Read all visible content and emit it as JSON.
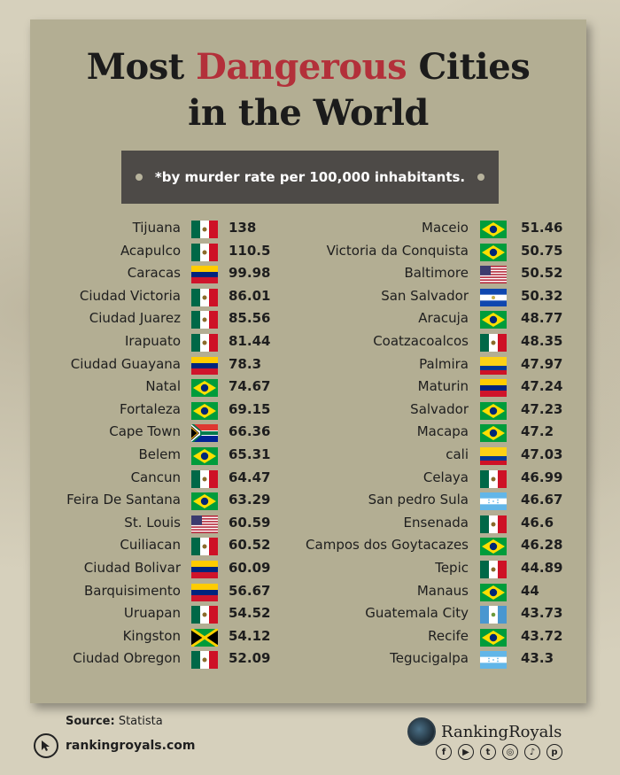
{
  "title": {
    "part1": "Most ",
    "highlight": "Dangerous",
    "part2": " Cities",
    "line2": "in the World"
  },
  "subtitle": "*by murder rate per 100,000 inhabitants.",
  "colors": {
    "highlight": "#b3303a",
    "poster": "#b3ae93",
    "bar": "#4d4a47"
  },
  "chart_data": {
    "type": "table",
    "columns": [
      {
        "rows": [
          {
            "city": "Tijuana",
            "country": "mexico",
            "rate": "138"
          },
          {
            "city": "Acapulco",
            "country": "mexico",
            "rate": "110.5"
          },
          {
            "city": "Caracas",
            "country": "venezuela",
            "rate": "99.98"
          },
          {
            "city": "Ciudad Victoria",
            "country": "mexico",
            "rate": "86.01"
          },
          {
            "city": "Ciudad Juarez",
            "country": "mexico",
            "rate": "85.56"
          },
          {
            "city": "Irapuato",
            "country": "mexico",
            "rate": "81.44"
          },
          {
            "city": "Ciudad Guayana",
            "country": "venezuela",
            "rate": "78.3"
          },
          {
            "city": "Natal",
            "country": "brazil",
            "rate": "74.67"
          },
          {
            "city": "Fortaleza",
            "country": "brazil",
            "rate": "69.15"
          },
          {
            "city": "Cape Town",
            "country": "south-africa",
            "rate": "66.36"
          },
          {
            "city": "Belem",
            "country": "brazil",
            "rate": "65.31"
          },
          {
            "city": "Cancun",
            "country": "mexico",
            "rate": "64.47"
          },
          {
            "city": "Feira De Santana",
            "country": "brazil",
            "rate": "63.29"
          },
          {
            "city": "St. Louis",
            "country": "usa",
            "rate": "60.59"
          },
          {
            "city": "Cuiliacan",
            "country": "mexico",
            "rate": "60.52"
          },
          {
            "city": "Ciudad Bolivar",
            "country": "venezuela",
            "rate": "60.09"
          },
          {
            "city": "Barquisimento",
            "country": "venezuela",
            "rate": "56.67"
          },
          {
            "city": "Uruapan",
            "country": "mexico",
            "rate": "54.52"
          },
          {
            "city": "Kingston",
            "country": "jamaica",
            "rate": "54.12"
          },
          {
            "city": "Ciudad Obregon",
            "country": "mexico",
            "rate": "52.09"
          }
        ]
      },
      {
        "rows": [
          {
            "city": "Maceio",
            "country": "brazil",
            "rate": "51.46"
          },
          {
            "city": "Victoria da Conquista",
            "country": "brazil",
            "rate": "50.75"
          },
          {
            "city": "Baltimore",
            "country": "usa",
            "rate": "50.52"
          },
          {
            "city": "San Salvador",
            "country": "el-salvador",
            "rate": "50.32"
          },
          {
            "city": "Aracuja",
            "country": "brazil",
            "rate": "48.77"
          },
          {
            "city": "Coatzacoalcos",
            "country": "mexico",
            "rate": "48.35"
          },
          {
            "city": "Palmira",
            "country": "colombia",
            "rate": "47.97"
          },
          {
            "city": "Maturin",
            "country": "venezuela",
            "rate": "47.24"
          },
          {
            "city": "Salvador",
            "country": "brazil",
            "rate": "47.23"
          },
          {
            "city": "Macapa",
            "country": "brazil",
            "rate": "47.2"
          },
          {
            "city": "cali",
            "country": "colombia",
            "rate": "47.03"
          },
          {
            "city": "Celaya",
            "country": "mexico",
            "rate": "46.99"
          },
          {
            "city": "San pedro Sula",
            "country": "honduras",
            "rate": "46.67"
          },
          {
            "city": "Ensenada",
            "country": "mexico",
            "rate": "46.6"
          },
          {
            "city": "Campos dos Goytacazes",
            "country": "brazil",
            "rate": "46.28"
          },
          {
            "city": "Tepic",
            "country": "mexico",
            "rate": "44.89"
          },
          {
            "city": "Manaus",
            "country": "brazil",
            "rate": "44"
          },
          {
            "city": "Guatemala City",
            "country": "guatemala",
            "rate": "43.73"
          },
          {
            "city": "Recife",
            "country": "brazil",
            "rate": "43.72"
          },
          {
            "city": "Tegucigalpa",
            "country": "honduras",
            "rate": "43.3"
          }
        ]
      }
    ]
  },
  "footer": {
    "source_label": "Source:",
    "source_value": "Statista",
    "website": "rankingroyals.com",
    "brand": "RankingRoyals",
    "socials": [
      "facebook-icon",
      "youtube-icon",
      "twitter-icon",
      "instagram-icon",
      "tiktok-icon",
      "pinterest-icon"
    ]
  }
}
